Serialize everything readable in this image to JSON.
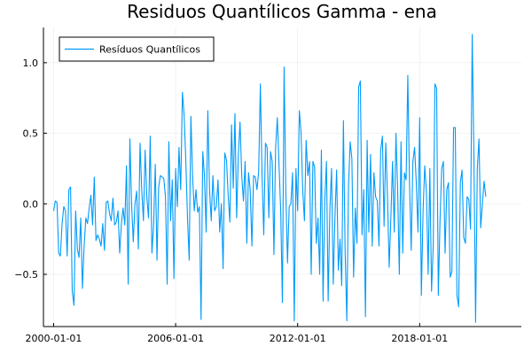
{
  "chart_data": {
    "type": "line",
    "title": "Residuos Quantílicos Gamma - ena",
    "xlabel": "",
    "ylabel": "",
    "xlim": [
      "1999-07-01",
      "2023-01-01"
    ],
    "ylim": [
      -0.87,
      1.25
    ],
    "x_ticks": [
      "2000-01-01",
      "2006-01-01",
      "2012-01-01",
      "2018-01-01"
    ],
    "y_ticks": [
      {
        "value": -0.5,
        "label": "−0.5"
      },
      {
        "value": 0.0,
        "label": "0.0"
      },
      {
        "value": 0.5,
        "label": "0.5"
      },
      {
        "value": 1.0,
        "label": "1.0"
      }
    ],
    "grid": true,
    "legend": {
      "position": "top-left"
    },
    "series": [
      {
        "name": "Resíduos Quantílicos",
        "color": "#009AFA",
        "start": "2000-01-01",
        "frequency": "monthly",
        "values": [
          -0.05,
          0.02,
          0.01,
          -0.35,
          -0.37,
          -0.14,
          -0.02,
          -0.05,
          -0.37,
          0.1,
          0.12,
          -0.62,
          -0.72,
          -0.05,
          -0.32,
          -0.38,
          -0.1,
          -0.6,
          -0.3,
          -0.1,
          -0.14,
          -0.03,
          0.06,
          -0.15,
          0.19,
          -0.26,
          -0.22,
          -0.25,
          -0.3,
          -0.14,
          -0.33,
          0.01,
          0.02,
          -0.07,
          -0.12,
          0.04,
          -0.15,
          -0.13,
          -0.05,
          -0.35,
          -0.14,
          -0.03,
          -0.15,
          0.27,
          -0.57,
          0.46,
          0.0,
          -0.27,
          0.0,
          0.09,
          -0.32,
          0.43,
          0.1,
          -0.12,
          0.38,
          0.05,
          -0.1,
          0.48,
          -0.35,
          -0.15,
          0.28,
          -0.4,
          0.12,
          0.2,
          0.19,
          0.18,
          0.05,
          -0.57,
          0.44,
          -0.12,
          0.17,
          -0.53,
          0.25,
          -0.02,
          0.4,
          0.1,
          0.79,
          0.63,
          0.31,
          -0.1,
          -0.4,
          0.62,
          0.2,
          -0.05,
          0.1,
          -0.06,
          -0.02,
          -0.82,
          0.37,
          0.2,
          -0.2,
          0.66,
          0.1,
          -0.12,
          0.2,
          -0.05,
          -0.02,
          0.17,
          -0.2,
          0.0,
          -0.46,
          0.36,
          0.31,
          0.06,
          -0.13,
          0.56,
          0.11,
          0.64,
          -0.1,
          0.34,
          0.58,
          0.2,
          0.02,
          0.3,
          -0.28,
          0.22,
          0.1,
          -0.3,
          0.2,
          0.19,
          0.1,
          0.23,
          0.85,
          0.2,
          -0.22,
          0.43,
          0.4,
          -0.1,
          0.37,
          0.3,
          -0.36,
          0.4,
          0.61,
          0.28,
          -0.05,
          -0.7,
          0.97,
          0.1,
          -0.42,
          -0.02,
          0.0,
          0.22,
          -0.83,
          0.25,
          -0.05,
          0.66,
          0.51,
          0.09,
          -0.12,
          0.45,
          0.2,
          0.3,
          -0.5,
          0.3,
          0.26,
          -0.28,
          -0.1,
          -0.5,
          0.38,
          -0.69,
          0.02,
          0.3,
          -0.69,
          -0.05,
          0.25,
          -0.57,
          -0.1,
          0.24,
          -0.47,
          -0.25,
          -0.58,
          0.59,
          -0.33,
          -0.83,
          0.12,
          0.44,
          0.32,
          -0.52,
          -0.03,
          -0.28,
          0.83,
          0.87,
          -0.22,
          0.1,
          -0.8,
          0.45,
          -0.2,
          0.35,
          -0.3,
          0.22,
          0.05,
          0.02,
          -0.3,
          0.38,
          0.48,
          -0.16,
          0.43,
          0.05,
          -0.45,
          -0.1,
          0.3,
          -0.2,
          0.5,
          0.1,
          -0.5,
          0.44,
          -0.35,
          0.22,
          0.17,
          0.91,
          0.15,
          -0.33,
          0.3,
          0.4,
          0.15,
          -0.2,
          0.61,
          -0.65,
          -0.05,
          0.27,
          0.08,
          -0.5,
          0.25,
          -0.62,
          -0.3,
          0.85,
          0.82,
          -0.65,
          -0.12,
          0.25,
          0.3,
          -0.35,
          0.1,
          0.15,
          -0.52,
          -0.48,
          0.54,
          0.54,
          -0.65,
          -0.73,
          0.15,
          0.24,
          -0.24,
          -0.28,
          0.05,
          0.03,
          -0.18,
          1.2,
          0.35,
          -0.84,
          0.25,
          0.46,
          -0.17,
          0.0,
          0.16,
          0.05
        ]
      }
    ]
  }
}
